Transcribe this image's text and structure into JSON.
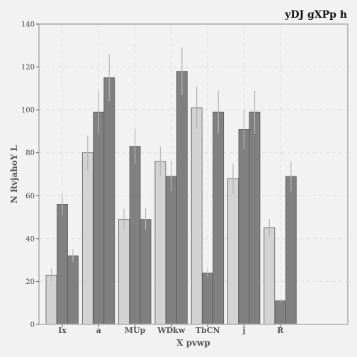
{
  "chart_data": {
    "type": "bar",
    "title": "yDJ gXPp h",
    "xlabel": "X pvwp",
    "ylabel": "N RvjahoY L",
    "categories": [
      "Ix",
      "a",
      "MUp",
      "WDkw",
      "TbCN",
      "j",
      "R"
    ],
    "ylim": [
      0,
      140
    ],
    "yticks": [
      0,
      20,
      40,
      60,
      80,
      100,
      120,
      140
    ],
    "grid": true,
    "series": [
      {
        "color": "#d3d3d3",
        "values": [
          23,
          80,
          49,
          76,
          101,
          68,
          45
        ],
        "errors": [
          3,
          8,
          5,
          7,
          10,
          7,
          4
        ]
      },
      {
        "color": "#808080",
        "values": [
          56,
          99,
          83,
          69,
          24,
          91,
          11
        ],
        "errors": [
          5,
          10,
          8,
          7,
          2,
          9,
          1
        ]
      },
      {
        "color": "#808080",
        "values": [
          32,
          115,
          49,
          118,
          99,
          99,
          69
        ],
        "errors": [
          3,
          11,
          5,
          11,
          10,
          10,
          7
        ]
      }
    ]
  }
}
